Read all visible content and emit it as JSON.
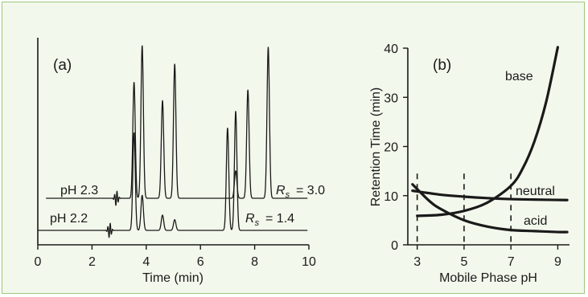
{
  "chart_data": [
    {
      "type": "line",
      "panel_label": "(a)",
      "xlabel": "Time (min)",
      "ylabel": "",
      "xlim": [
        0,
        10
      ],
      "xticks": [
        "0",
        "2",
        "4",
        "6",
        "8",
        "10"
      ],
      "series": [
        {
          "name": "pH 2.3",
          "annotation": "= 3.0",
          "disturbance_time": 2.9,
          "peaks": [
            {
              "t": 3.55,
              "h": 0.76
            },
            {
              "t": 3.85,
              "h": 1.0
            },
            {
              "t": 4.6,
              "h": 0.64
            },
            {
              "t": 5.05,
              "h": 0.88
            },
            {
              "t": 7.3,
              "h": 0.18
            },
            {
              "t": 7.75,
              "h": 0.71
            },
            {
              "t": 8.5,
              "h": 0.99
            }
          ]
        },
        {
          "name": "pH 2.2",
          "annotation": "= 1.4",
          "disturbance_time": 2.65,
          "peaks": [
            {
              "t": 3.55,
              "h": 0.64
            },
            {
              "t": 3.85,
              "h": 0.23
            },
            {
              "t": 4.6,
              "h": 0.1
            },
            {
              "t": 5.05,
              "h": 0.07
            },
            {
              "t": 7.0,
              "h": 0.67
            },
            {
              "t": 7.3,
              "h": 0.78
            }
          ]
        }
      ]
    },
    {
      "type": "line",
      "panel_label": "(b)",
      "xlabel": "Mobile Phase pH",
      "ylabel": "Retention Time (min)",
      "xlim": [
        2.6,
        9.5
      ],
      "ylim": [
        0,
        40
      ],
      "xticks": [
        3,
        5,
        7,
        9
      ],
      "yticks": [
        0,
        10,
        20,
        30,
        40
      ],
      "dashed_lines_x": [
        3,
        5,
        7
      ],
      "series": [
        {
          "name": "base",
          "x": [
            3,
            4,
            5,
            6,
            7,
            7.5,
            8,
            8.5,
            9
          ],
          "y": [
            5.9,
            6.1,
            6.9,
            8.6,
            12.0,
            15.5,
            21.0,
            29.0,
            40.2
          ]
        },
        {
          "name": "neutral",
          "x": [
            2.8,
            4,
            5,
            6,
            7,
            8,
            9.4
          ],
          "y": [
            11.0,
            10.2,
            9.8,
            9.5,
            9.3,
            9.2,
            9.1
          ]
        },
        {
          "name": "acid",
          "x": [
            2.8,
            3.5,
            4,
            5,
            6,
            7,
            8,
            9,
            9.4
          ],
          "y": [
            12.3,
            9.0,
            7.3,
            5.0,
            3.7,
            3.0,
            2.8,
            2.6,
            2.6
          ]
        }
      ]
    }
  ]
}
